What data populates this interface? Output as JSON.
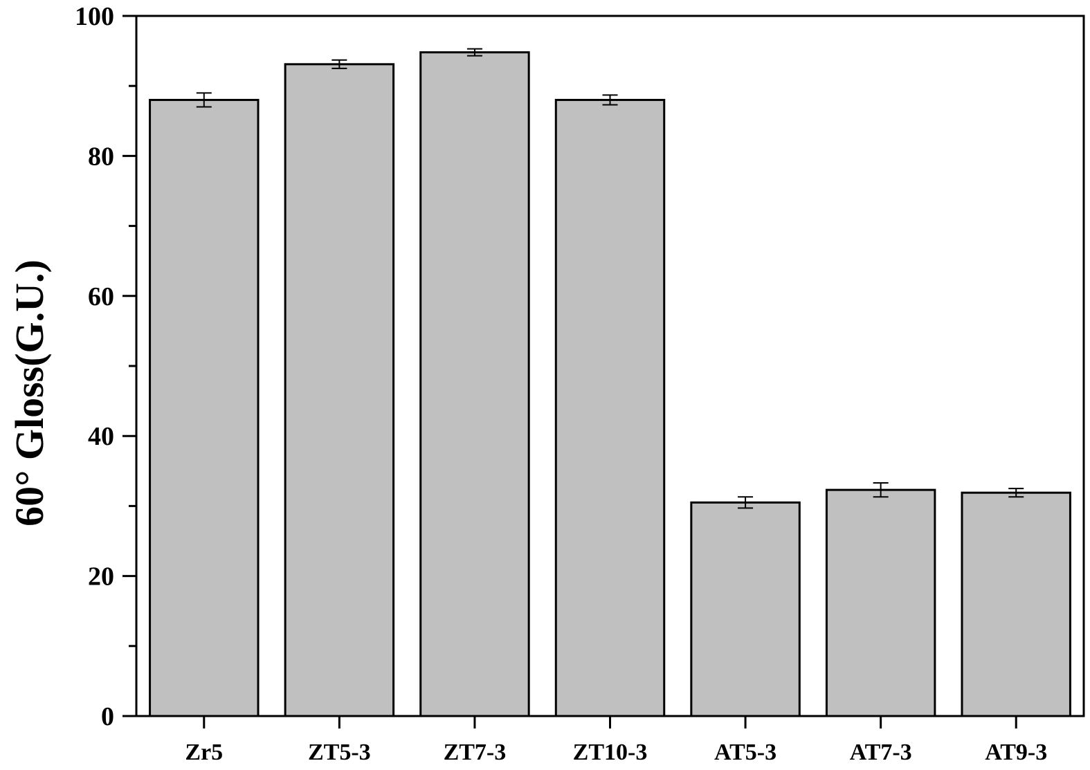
{
  "chart_data": {
    "type": "bar",
    "title": "",
    "xlabel": "",
    "ylabel": "60° Gloss(G.U.)",
    "ylim": [
      0,
      100
    ],
    "yticks": [
      0,
      20,
      40,
      60,
      80,
      100
    ],
    "ytick_labels": [
      "0",
      "20",
      "40",
      "60",
      "80",
      "100"
    ],
    "categories": [
      "Zr5",
      "ZT5-3",
      "ZT7-3",
      "ZT10-3",
      "AT5-3",
      "AT7-3",
      "AT9-3"
    ],
    "values": [
      88.0,
      93.1,
      94.8,
      88.0,
      30.5,
      32.3,
      31.9
    ],
    "errors": [
      1.0,
      0.6,
      0.5,
      0.7,
      0.8,
      1.0,
      0.6
    ],
    "bar_color": "#c0c0c0",
    "edge_color": "#000000",
    "grid": false,
    "legend": "none"
  }
}
